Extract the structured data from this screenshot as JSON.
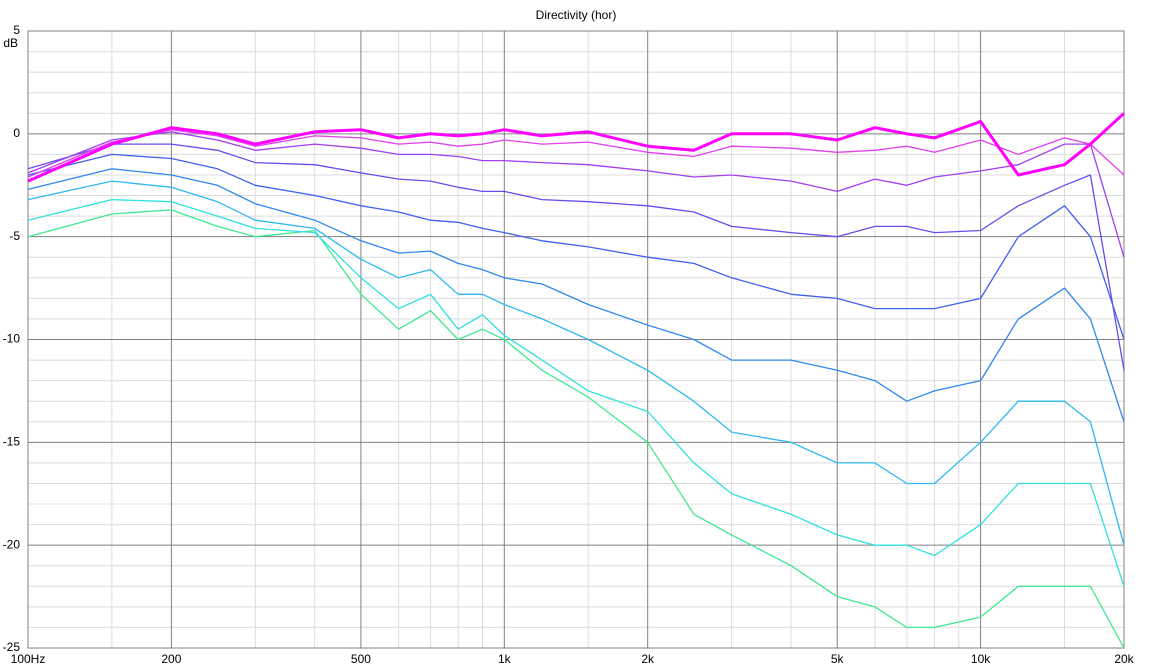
{
  "chart_data": {
    "type": "line",
    "title": "Directivity (hor)",
    "ylabel": "dB",
    "xscale": "log",
    "xlim": [
      100,
      20000
    ],
    "ylim": [
      -25,
      5
    ],
    "grid": true,
    "xticks": [
      {
        "value": 100,
        "label": "100Hz"
      },
      200,
      500,
      {
        "value": 1000,
        "label": "1k"
      },
      {
        "value": 2000,
        "label": "2k"
      },
      {
        "value": 5000,
        "label": "5k"
      },
      {
        "value": 10000,
        "label": "10k"
      },
      {
        "value": 20000,
        "label": "20k"
      }
    ],
    "xminor_ticks": [
      150,
      300,
      400,
      600,
      700,
      800,
      900,
      1500,
      3000,
      4000,
      6000,
      7000,
      8000,
      9000,
      15000
    ],
    "yticks": [
      5,
      0,
      -5,
      -10,
      -15,
      -20,
      -25
    ],
    "yminor_ticks": [
      4,
      3,
      2,
      1,
      -1,
      -2,
      -3,
      -4,
      -6,
      -7,
      -8,
      -9,
      -11,
      -12,
      -13,
      -14,
      -16,
      -17,
      -18,
      -19,
      -21,
      -22,
      -23,
      -24
    ],
    "x": [
      100,
      150,
      200,
      250,
      300,
      400,
      500,
      600,
      700,
      800,
      900,
      1000,
      1200,
      1500,
      2000,
      2500,
      3000,
      4000,
      5000,
      6000,
      7000,
      8000,
      10000,
      12000,
      15000,
      17000,
      20000
    ],
    "series": [
      {
        "color": "#ff00ff",
        "width": 3,
        "values": [
          -2.3,
          -0.5,
          0.3,
          0,
          -0.5,
          0.1,
          0.2,
          -0.2,
          0,
          -0.1,
          0,
          0.2,
          -0.1,
          0.1,
          -0.6,
          -0.8,
          0,
          0,
          -0.3,
          0.3,
          0,
          -0.2,
          0.6,
          -2,
          -1.5,
          -0.5,
          1
        ]
      },
      {
        "color": "#e040f0",
        "width": 1.3,
        "values": [
          -2.1,
          -0.4,
          0.2,
          -0.1,
          -0.6,
          -0.1,
          -0.2,
          -0.5,
          -0.4,
          -0.6,
          -0.5,
          -0.3,
          -0.5,
          -0.4,
          -0.9,
          -1.1,
          -0.6,
          -0.7,
          -0.9,
          -0.8,
          -0.6,
          -0.9,
          -0.3,
          -1,
          -0.2,
          -0.5,
          -2
        ]
      },
      {
        "color": "#a040f0",
        "width": 1.3,
        "values": [
          -1.9,
          -0.3,
          0.1,
          -0.3,
          -0.8,
          -0.5,
          -0.7,
          -1,
          -1,
          -1.1,
          -1.3,
          -1.3,
          -1.4,
          -1.5,
          -1.8,
          -2.1,
          -2,
          -2.3,
          -2.8,
          -2.2,
          -2.5,
          -2.1,
          -1.8,
          -1.5,
          -0.5,
          -0.5,
          -6
        ]
      },
      {
        "color": "#6050f0",
        "width": 1.3,
        "values": [
          -1.7,
          -0.5,
          -0.5,
          -0.8,
          -1.4,
          -1.5,
          -1.9,
          -2.2,
          -2.3,
          -2.6,
          -2.8,
          -2.8,
          -3.2,
          -3.3,
          -3.5,
          -3.8,
          -4.5,
          -4.8,
          -5,
          -4.5,
          -4.5,
          -4.8,
          -4.7,
          -3.5,
          -2.5,
          -2,
          -11.5
        ]
      },
      {
        "color": "#4060f0",
        "width": 1.3,
        "values": [
          -2,
          -1,
          -1.2,
          -1.7,
          -2.5,
          -3,
          -3.5,
          -3.8,
          -4.2,
          -4.3,
          -4.6,
          -4.8,
          -5.2,
          -5.5,
          -6,
          -6.3,
          -7,
          -7.8,
          -8,
          -8.5,
          -8.5,
          -8.5,
          -8,
          -5,
          -3.5,
          -5,
          -10
        ]
      },
      {
        "color": "#3088f0",
        "width": 1.3,
        "values": [
          -2.7,
          -1.7,
          -2,
          -2.5,
          -3.4,
          -4.2,
          -5.2,
          -5.8,
          -5.7,
          -6.3,
          -6.6,
          -7,
          -7.3,
          -8.3,
          -9.3,
          -10,
          -11,
          -11,
          -11.5,
          -12,
          -13,
          -12.5,
          -12,
          -9,
          -7.5,
          -9,
          -14
        ]
      },
      {
        "color": "#30b8f0",
        "width": 1.3,
        "values": [
          -3.2,
          -2.3,
          -2.6,
          -3.3,
          -4.2,
          -4.6,
          -6.1,
          -7,
          -6.6,
          -7.8,
          -7.8,
          -8.3,
          -9,
          -10,
          -11.5,
          -13,
          -14.5,
          -15,
          -16,
          -16,
          -17,
          -17,
          -15,
          -13,
          -13,
          -14,
          -20
        ]
      },
      {
        "color": "#30e0e0",
        "width": 1.3,
        "values": [
          -4.2,
          -3.2,
          -3.3,
          -4,
          -4.6,
          -4.8,
          -7,
          -8.5,
          -7.8,
          -9.5,
          -8.8,
          -9.8,
          -11,
          -12.5,
          -13.5,
          -16,
          -17.5,
          -18.5,
          -19.5,
          -20,
          -20,
          -20.5,
          -19,
          -17,
          -17,
          -17,
          -22
        ]
      },
      {
        "color": "#40e890",
        "width": 1.3,
        "values": [
          -5,
          -3.9,
          -3.7,
          -4.5,
          -5,
          -4.7,
          -7.8,
          -9.5,
          -8.6,
          -10,
          -9.5,
          -10,
          -11.5,
          -12.8,
          -15,
          -18.5,
          -19.5,
          -21,
          -22.5,
          -23,
          -24,
          -24,
          -23.5,
          -22,
          -22,
          -22,
          -25
        ]
      }
    ]
  }
}
